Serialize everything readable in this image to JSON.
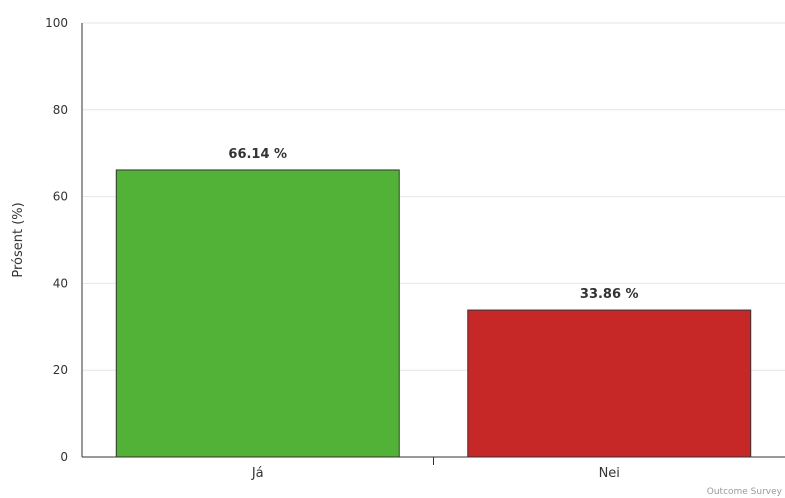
{
  "chart_data": {
    "type": "bar",
    "categories": [
      "Já",
      "Nei"
    ],
    "values": [
      66.14,
      33.86
    ],
    "data_labels": [
      "66.14 %",
      "33.86 %"
    ],
    "colors": [
      "#52b237",
      "#c62828"
    ],
    "title": "",
    "xlabel": "",
    "ylabel": "Prósent (%)",
    "ylim": [
      0,
      100
    ],
    "yticks": [
      0,
      20,
      40,
      60,
      80,
      100
    ],
    "grid": true,
    "legend": "none"
  },
  "credits": "Outcome Survey"
}
